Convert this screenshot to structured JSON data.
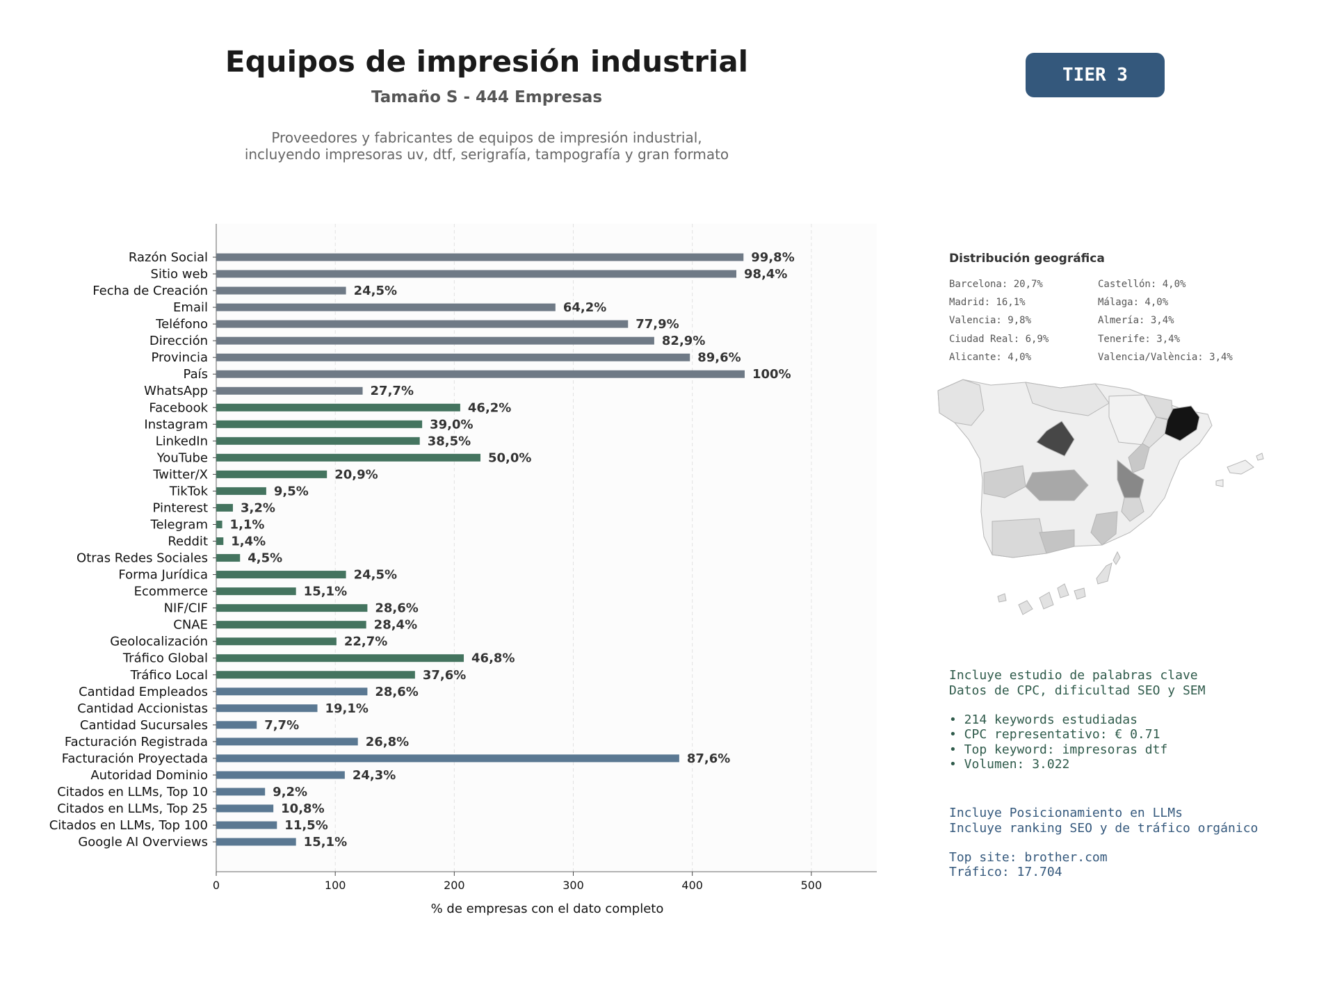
{
  "header": {
    "title": "Equipos de impresión industrial",
    "subtitle": "Tamaño S - 444 Empresas",
    "description_line1": "Proveedores y fabricantes de equipos de impresión industrial,",
    "description_line2": "incluyendo impresoras uv, dtf, serigrafía, tampografía y gran formato",
    "tier": "TIER 3"
  },
  "colors": {
    "grey": "#6f7a86",
    "green": "#44745f",
    "blue": "#5a7892",
    "tier_bg": "#34587c"
  },
  "chart_data": {
    "type": "bar",
    "orientation": "horizontal",
    "xlabel": "% de empresas con el dato completo",
    "xlim": [
      0,
      555
    ],
    "xticks": [
      0,
      100,
      200,
      300,
      400,
      500
    ],
    "grid": "vertical dashed",
    "categories": [
      "Razón Social",
      "Sitio web",
      "Fecha de Creación",
      "Email",
      "Teléfono",
      "Dirección",
      "Provincia",
      "País",
      "WhatsApp",
      "Facebook",
      "Instagram",
      "LinkedIn",
      "YouTube",
      "Twitter/X",
      "TikTok",
      "Pinterest",
      "Telegram",
      "Reddit",
      "Otras Redes Sociales",
      "Forma Jurídica",
      "Ecommerce",
      "NIF/CIF",
      "CNAE",
      "Geolocalización",
      "Tráfico Global",
      "Tráfico Local",
      "Cantidad Empleados",
      "Cantidad Accionistas",
      "Cantidad Sucursales",
      "Facturación Registrada",
      "Facturación Proyectada",
      "Autoridad Dominio",
      "Citados en LLMs, Top 10",
      "Citados en LLMs, Top 25",
      "Citados en LLMs, Top 100",
      "Google AI Overviews"
    ],
    "values": [
      443,
      437,
      109,
      285,
      346,
      368,
      398,
      444,
      123,
      205,
      173,
      171,
      222,
      93,
      42,
      14,
      5,
      6,
      20,
      109,
      67,
      127,
      126,
      101,
      208,
      167,
      127,
      85,
      34,
      119,
      389,
      108,
      41,
      48,
      51,
      67
    ],
    "labels": [
      "99,8%",
      "98,4%",
      "24,5%",
      "64,2%",
      "77,9%",
      "82,9%",
      "89,6%",
      "100%",
      "27,7%",
      "46,2%",
      "39,0%",
      "38,5%",
      "50,0%",
      "20,9%",
      "9,5%",
      "3,2%",
      "1,1%",
      "1,4%",
      "4,5%",
      "24,5%",
      "15,1%",
      "28,6%",
      "28,4%",
      "22,7%",
      "46,8%",
      "37,6%",
      "28,6%",
      "19,1%",
      "7,7%",
      "26,8%",
      "87,6%",
      "24,3%",
      "9,2%",
      "10,8%",
      "11,5%",
      "15,1%"
    ],
    "groups": [
      "grey",
      "grey",
      "grey",
      "grey",
      "grey",
      "grey",
      "grey",
      "grey",
      "grey",
      "green",
      "green",
      "green",
      "green",
      "green",
      "green",
      "green",
      "green",
      "green",
      "green",
      "green",
      "green",
      "green",
      "green",
      "green",
      "green",
      "green",
      "blue",
      "blue",
      "blue",
      "blue",
      "blue",
      "blue",
      "blue",
      "blue",
      "blue",
      "blue"
    ]
  },
  "geo": {
    "title": "Distribución geográfica",
    "col1": [
      "Barcelona: 20,7%",
      "Madrid: 16,1%",
      "Valencia: 9,8%",
      "Ciudad Real: 6,9%",
      "Alicante: 4,0%"
    ],
    "col2": [
      "Castellón: 4,0%",
      "Málaga: 4,0%",
      "Almería: 3,4%",
      "Tenerife: 3,4%",
      "Valencia/València: 3,4%"
    ]
  },
  "seo": {
    "line1": "Incluye estudio de palabras clave",
    "line2": "Datos de CPC, dificultad SEO y SEM",
    "bullet1": "• 214 keywords estudiadas",
    "bullet2": "• CPC representativo: € 0.71",
    "bullet3": "• Top keyword: impresoras dtf",
    "bullet4": "• Volumen: 3.022"
  },
  "llm": {
    "line1": "Incluye Posicionamiento en LLMs",
    "line2": "Incluye ranking SEO y de tráfico orgánico",
    "top_site": "Top site: brother.com",
    "traffic": "Tráfico: 17.704"
  }
}
